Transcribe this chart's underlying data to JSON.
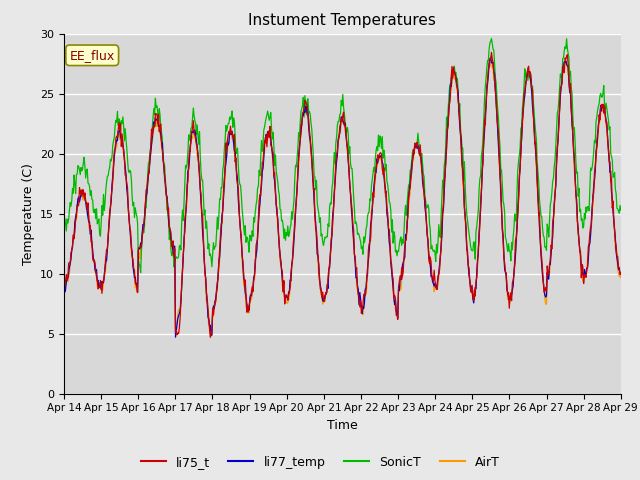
{
  "title": "Instument Temperatures",
  "xlabel": "Time",
  "ylabel": "Temperature (C)",
  "ylim": [
    0,
    30
  ],
  "x_tick_labels": [
    "Apr 14",
    "Apr 15",
    "Apr 16",
    "Apr 17",
    "Apr 18",
    "Apr 19",
    "Apr 20",
    "Apr 21",
    "Apr 22",
    "Apr 23",
    "Apr 24",
    "Apr 25",
    "Apr 26",
    "Apr 27",
    "Apr 28",
    "Apr 29"
  ],
  "annotation": "EE_flux",
  "bg_color": "#d8d8d8",
  "fig_color": "#e8e8e8",
  "line_colors": {
    "li75_t": "#cc0000",
    "li77_temp": "#0000cc",
    "SonicT": "#00bb00",
    "AirT": "#ff9900"
  },
  "n_days": 15,
  "points_per_day": 48
}
